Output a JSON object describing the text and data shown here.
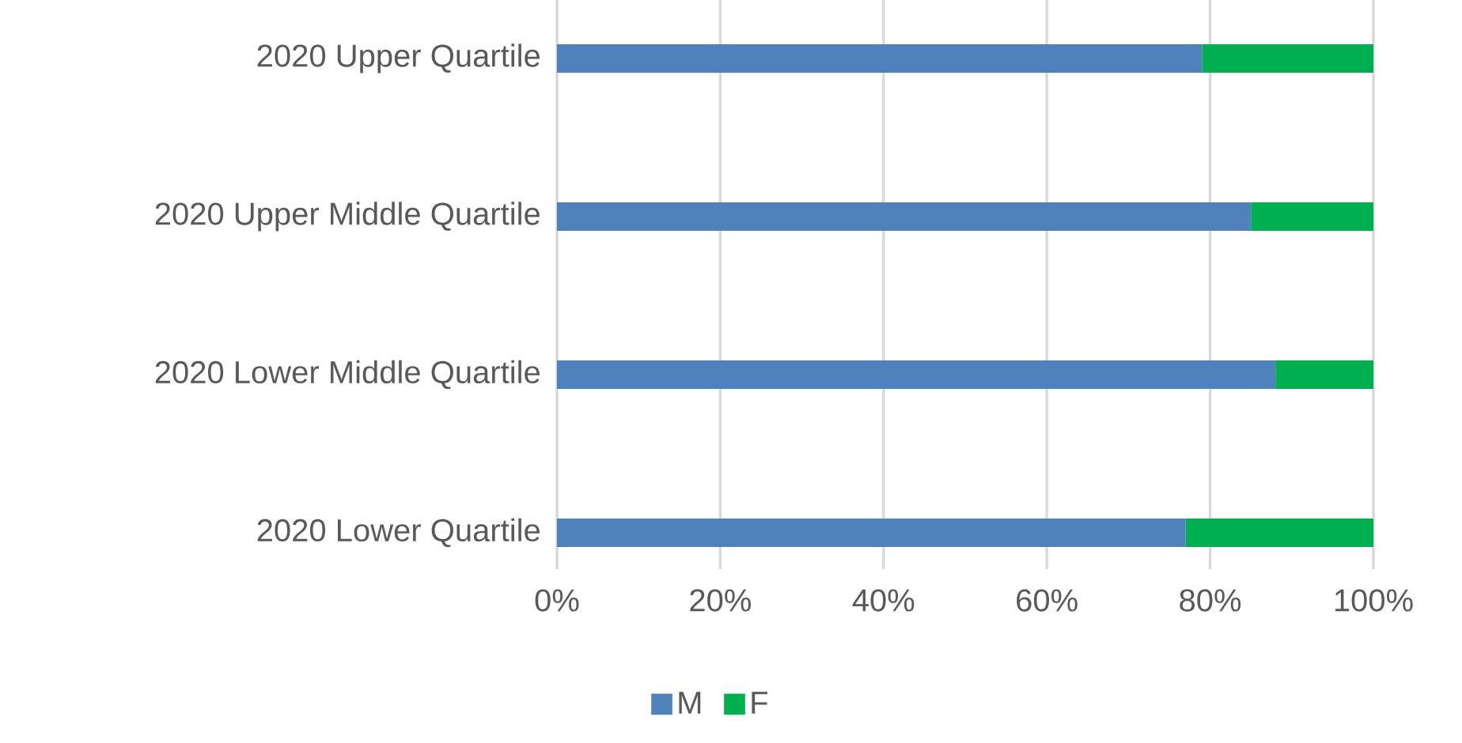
{
  "chart_data": {
    "type": "bar",
    "orientation": "horizontal",
    "stacked": true,
    "categories": [
      "2020 Upper Quartile",
      "2020 Upper Middle Quartile",
      "2020 Lower Middle Quartile",
      "2020 Lower Quartile"
    ],
    "series": [
      {
        "name": "M",
        "color": "#4f81bd",
        "values": [
          79,
          85,
          88,
          77
        ]
      },
      {
        "name": "F",
        "color": "#00b050",
        "values": [
          21,
          15,
          12,
          23
        ]
      }
    ],
    "xlim": [
      0,
      100
    ],
    "xticks": [
      {
        "value": 0,
        "label": "0%"
      },
      {
        "value": 20,
        "label": "20%"
      },
      {
        "value": 40,
        "label": "40%"
      },
      {
        "value": 60,
        "label": "60%"
      },
      {
        "value": 80,
        "label": "80%"
      },
      {
        "value": 100,
        "label": "100%"
      }
    ],
    "grid": "x",
    "legend": "bottom"
  }
}
